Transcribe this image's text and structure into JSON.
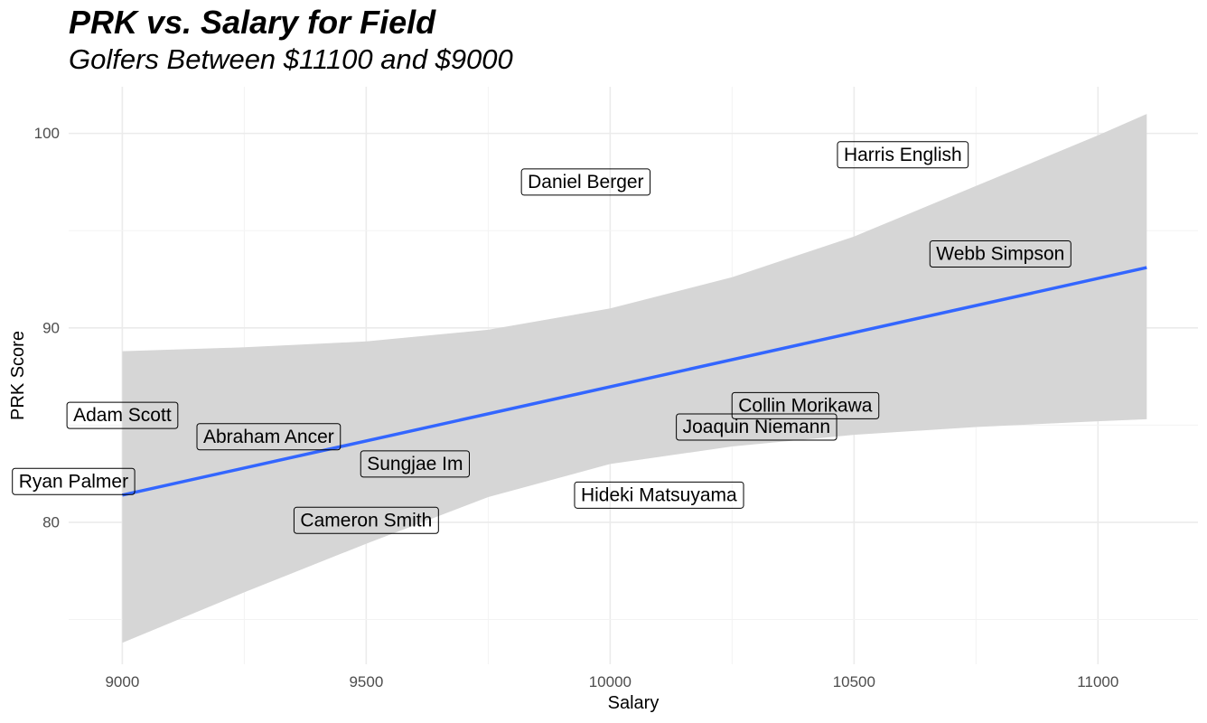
{
  "title": "PRK vs. Salary for Field",
  "subtitle": "Golfers Between $11100 and $9000",
  "chart_data": {
    "type": "scatter",
    "title": "PRK vs. Salary for Field",
    "subtitle": "Golfers Between $11100 and $9000",
    "xlabel": "Salary",
    "ylabel": "PRK Score",
    "xlim": [
      8890,
      11205
    ],
    "ylim": [
      72.7,
      102.4
    ],
    "x_ticks": [
      9000,
      9500,
      10000,
      10500,
      11000
    ],
    "y_ticks": [
      80,
      90,
      100
    ],
    "x_tick_labels": [
      "9000",
      "9500",
      "10000",
      "10500",
      "11000"
    ],
    "y_tick_labels": [
      "80",
      "90",
      "100"
    ],
    "grid": true,
    "points": [
      {
        "name": "Harris English",
        "x": 10600,
        "y": 98.9
      },
      {
        "name": "Daniel Berger",
        "x": 9950,
        "y": 97.5
      },
      {
        "name": "Webb Simpson",
        "x": 10800,
        "y": 93.8
      },
      {
        "name": "Collin Morikawa",
        "x": 10400,
        "y": 86.0
      },
      {
        "name": "Joaquin Niemann",
        "x": 10300,
        "y": 84.9
      },
      {
        "name": "Adam Scott",
        "x": 9000,
        "y": 85.5
      },
      {
        "name": "Abraham Ancer",
        "x": 9300,
        "y": 84.4
      },
      {
        "name": "Sungjae Im",
        "x": 9600,
        "y": 83.0
      },
      {
        "name": "Ryan Palmer",
        "x": 8900,
        "y": 82.1
      },
      {
        "name": "Hideki Matsuyama",
        "x": 10100,
        "y": 81.4
      },
      {
        "name": "Cameron Smith",
        "x": 9500,
        "y": 80.1
      }
    ],
    "trend_line": {
      "type": "linear",
      "color": "#3366ff",
      "x": [
        9000,
        11100
      ],
      "y": [
        81.4,
        93.1
      ]
    },
    "confidence_band": {
      "color": "#d6d6d6",
      "x": [
        9000,
        9250,
        9500,
        9750,
        10000,
        10250,
        10500,
        10750,
        11000,
        11100
      ],
      "lower": [
        73.8,
        76.4,
        78.9,
        81.3,
        83.0,
        83.9,
        84.5,
        84.9,
        85.2,
        85.3
      ],
      "upper": [
        88.8,
        89.0,
        89.3,
        89.9,
        91.0,
        92.6,
        94.7,
        97.3,
        99.9,
        101.0
      ]
    }
  }
}
